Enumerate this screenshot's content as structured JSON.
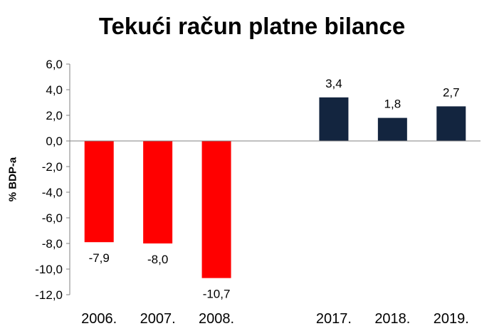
{
  "chart_data": {
    "type": "bar",
    "title": "Tekući račun platne bilance",
    "xlabel": "",
    "ylabel": "% BDP-a",
    "ylim": [
      -12.0,
      6.0
    ],
    "yticks": [
      "6,0",
      "4,0",
      "2,0",
      "0,0",
      "-2,0",
      "-4,0",
      "-6,0",
      "-8,0",
      "-10,0",
      "-12,0"
    ],
    "ytick_values": [
      6,
      4,
      2,
      0,
      -2,
      -4,
      -6,
      -8,
      -10,
      -12
    ],
    "categories": [
      "2006.",
      "2007.",
      "2008.",
      "",
      "2017.",
      "2018.",
      "2019."
    ],
    "values": [
      -7.9,
      -8.0,
      -10.7,
      null,
      3.4,
      1.8,
      2.7
    ],
    "data_labels": [
      "-7,9",
      "-8,0",
      "-10,7",
      "",
      "3,4",
      "1,8",
      "2,7"
    ],
    "colors": {
      "negative": "#ff0000",
      "positive": "#13253f",
      "axis": "#808080"
    },
    "grid": false,
    "legend": "none"
  }
}
